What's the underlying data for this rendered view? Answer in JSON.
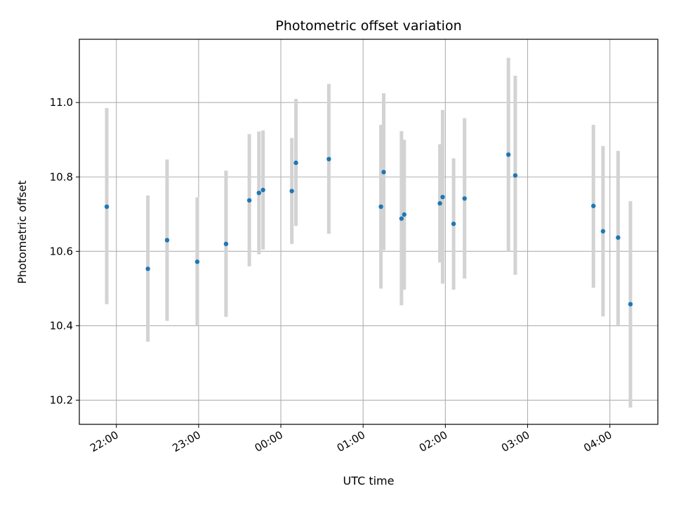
{
  "chart_data": {
    "type": "scatter",
    "title": "Photometric offset variation",
    "xlabel": "UTC time",
    "ylabel": "Photometric offset",
    "x_ticks": [
      "22:00",
      "23:00",
      "00:00",
      "01:00",
      "02:00",
      "03:00",
      "04:00"
    ],
    "y_ticks": [
      "10.2",
      "10.4",
      "10.6",
      "10.8",
      "11.0"
    ],
    "x_range": [
      "21:33",
      "04:35"
    ],
    "ylim": [
      10.135,
      11.17
    ],
    "grid": true,
    "marker_color": "#1f77b4",
    "errorbar_color": "#d3d3d3",
    "points": [
      {
        "x": "21:53",
        "y": 10.72,
        "ylow": 10.458,
        "yhigh": 10.985
      },
      {
        "x": "22:23",
        "y": 10.553,
        "ylow": 10.357,
        "yhigh": 10.75
      },
      {
        "x": "22:37",
        "y": 10.63,
        "ylow": 10.413,
        "yhigh": 10.847
      },
      {
        "x": "22:59",
        "y": 10.572,
        "ylow": 10.4,
        "yhigh": 10.745
      },
      {
        "x": "23:20",
        "y": 10.62,
        "ylow": 10.424,
        "yhigh": 10.817
      },
      {
        "x": "23:37",
        "y": 10.737,
        "ylow": 10.56,
        "yhigh": 10.915
      },
      {
        "x": "23:44",
        "y": 10.757,
        "ylow": 10.592,
        "yhigh": 10.922
      },
      {
        "x": "23:47",
        "y": 10.765,
        "ylow": 10.605,
        "yhigh": 10.925
      },
      {
        "x": "00:08",
        "y": 10.762,
        "ylow": 10.62,
        "yhigh": 10.905
      },
      {
        "x": "00:11",
        "y": 10.838,
        "ylow": 10.668,
        "yhigh": 11.01
      },
      {
        "x": "00:35",
        "y": 10.848,
        "ylow": 10.647,
        "yhigh": 11.05
      },
      {
        "x": "01:13",
        "y": 10.72,
        "ylow": 10.5,
        "yhigh": 10.94
      },
      {
        "x": "01:15",
        "y": 10.813,
        "ylow": 10.603,
        "yhigh": 11.025
      },
      {
        "x": "01:28",
        "y": 10.688,
        "ylow": 10.455,
        "yhigh": 10.923
      },
      {
        "x": "01:30",
        "y": 10.699,
        "ylow": 10.497,
        "yhigh": 10.9
      },
      {
        "x": "01:56",
        "y": 10.729,
        "ylow": 10.57,
        "yhigh": 10.888
      },
      {
        "x": "01:58",
        "y": 10.746,
        "ylow": 10.513,
        "yhigh": 10.98
      },
      {
        "x": "02:06",
        "y": 10.674,
        "ylow": 10.497,
        "yhigh": 10.85
      },
      {
        "x": "02:14",
        "y": 10.742,
        "ylow": 10.527,
        "yhigh": 10.958
      },
      {
        "x": "02:46",
        "y": 10.86,
        "ylow": 10.6,
        "yhigh": 11.12
      },
      {
        "x": "02:51",
        "y": 10.804,
        "ylow": 10.537,
        "yhigh": 11.072
      },
      {
        "x": "03:48",
        "y": 10.722,
        "ylow": 10.502,
        "yhigh": 10.94
      },
      {
        "x": "03:55",
        "y": 10.654,
        "ylow": 10.425,
        "yhigh": 10.883
      },
      {
        "x": "04:06",
        "y": 10.637,
        "ylow": 10.402,
        "yhigh": 10.87
      },
      {
        "x": "04:15",
        "y": 10.458,
        "ylow": 10.18,
        "yhigh": 10.735
      }
    ]
  }
}
